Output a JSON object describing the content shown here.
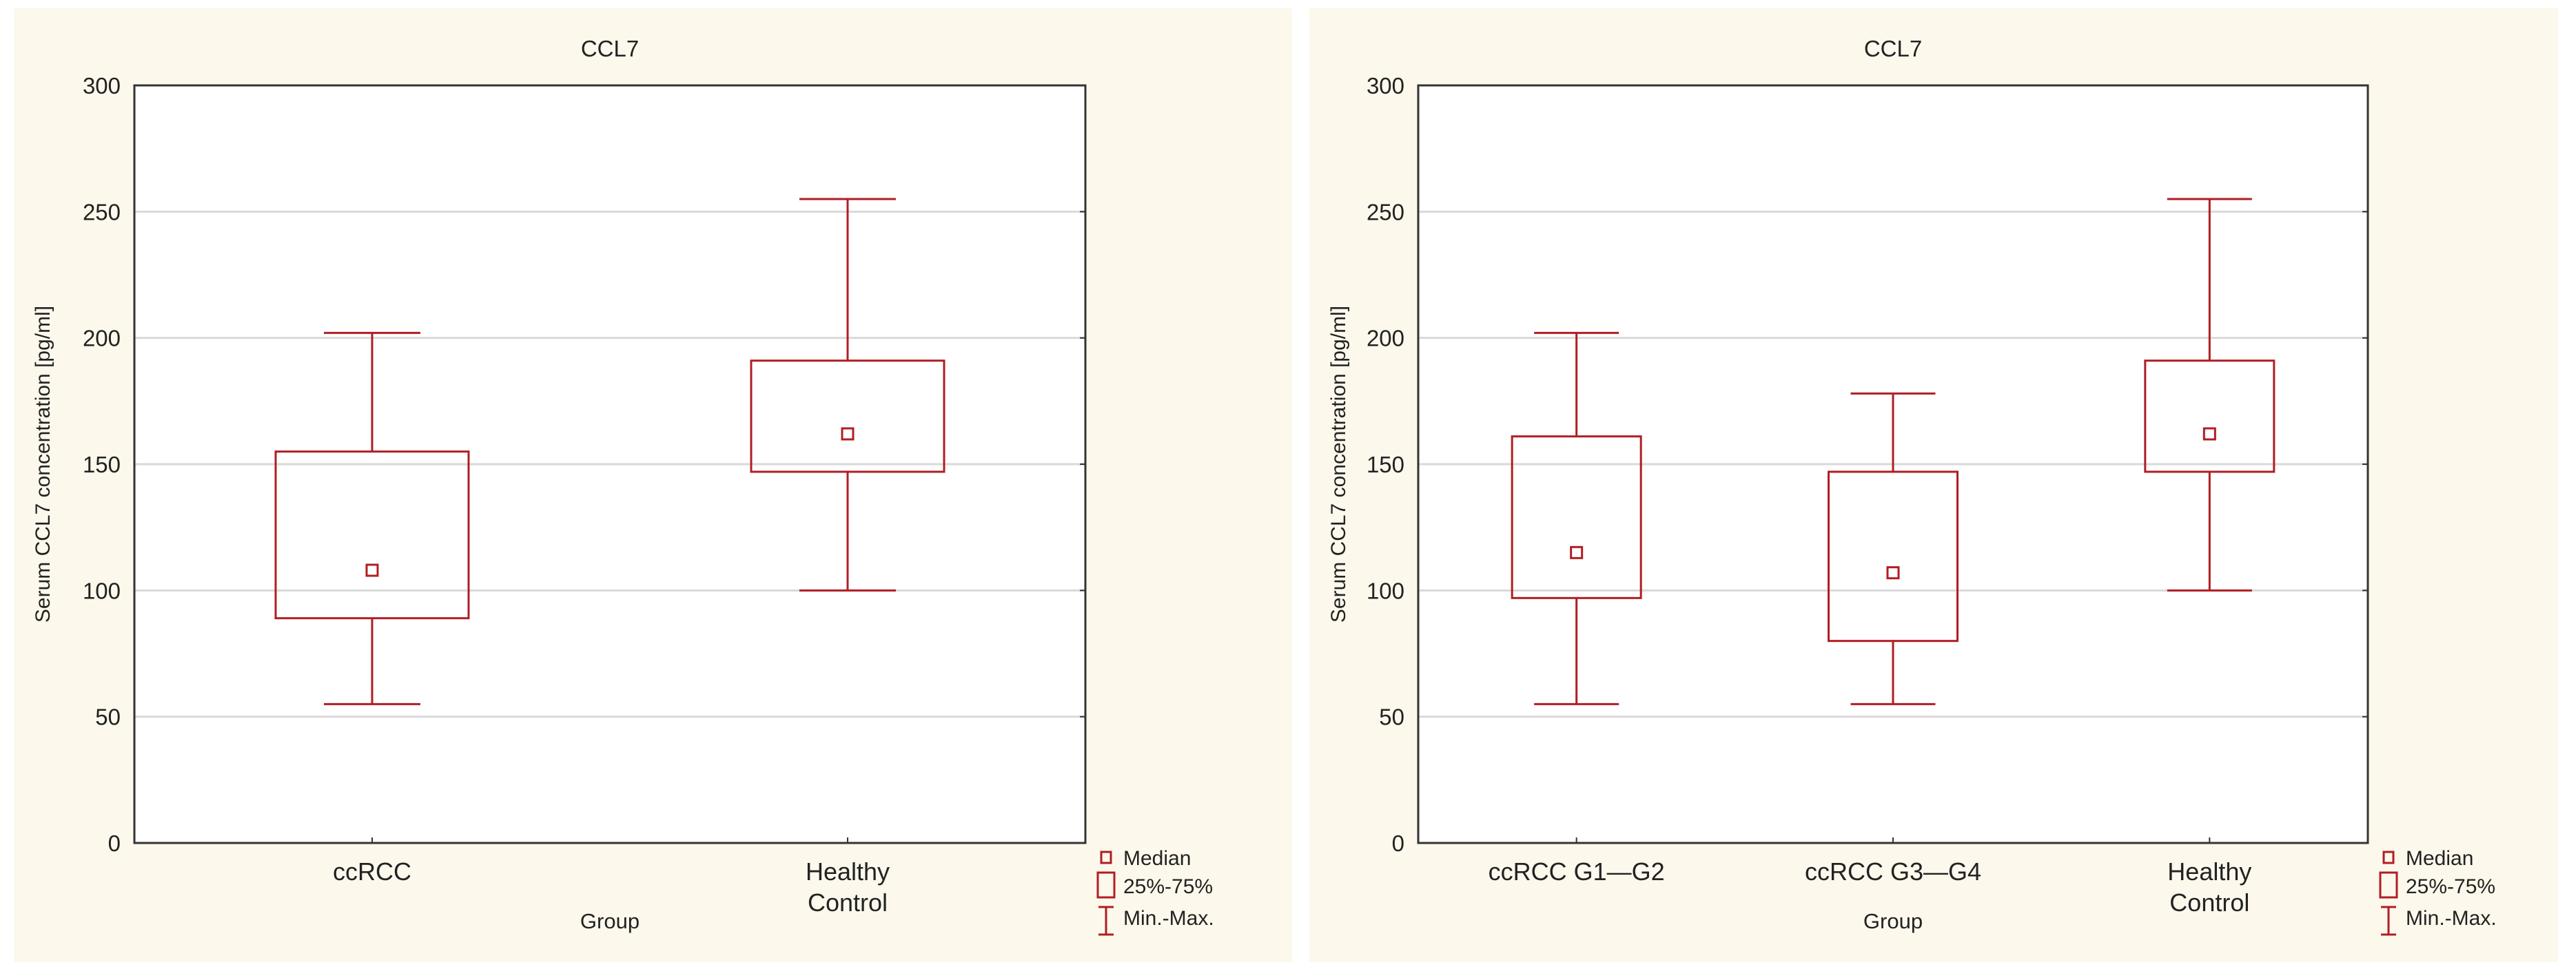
{
  "colors": {
    "box": "#b01e23",
    "panel_bg": "#fcf8ec",
    "grid": "#d9d9d9"
  },
  "chart_data": [
    {
      "type": "boxplot",
      "title": "CCL7",
      "xlabel": "Group",
      "ylabel": "Serum CCL7 concentration [pg/ml]",
      "ylim": [
        0,
        300
      ],
      "yticks": [
        0,
        50,
        100,
        150,
        200,
        250,
        300
      ],
      "grid": true,
      "legend_position": "bottom-right",
      "legend": [
        "Median",
        "25%-75%",
        "Min.-Max."
      ],
      "categories": [
        [
          "ccRCC"
        ],
        [
          "Healthy",
          "Control"
        ]
      ],
      "series": [
        {
          "name": "ccRCC",
          "min": 55,
          "q1": 89,
          "median": 108,
          "q3": 155,
          "max": 202
        },
        {
          "name": "Healthy Control",
          "min": 100,
          "q1": 147,
          "median": 162,
          "q3": 191,
          "max": 255
        }
      ]
    },
    {
      "type": "boxplot",
      "title": "CCL7",
      "xlabel": "Group",
      "ylabel": "Serum CCL7 concentration [pg/ml]",
      "ylim": [
        0,
        300
      ],
      "yticks": [
        0,
        50,
        100,
        150,
        200,
        250,
        300
      ],
      "grid": true,
      "legend_position": "bottom-right",
      "legend": [
        "Median",
        "25%-75%",
        "Min.-Max."
      ],
      "categories": [
        [
          "ccRCC G1—G2"
        ],
        [
          "ccRCC G3—G4"
        ],
        [
          "Healthy",
          "Control"
        ]
      ],
      "series": [
        {
          "name": "ccRCC G1—G2",
          "min": 55,
          "q1": 97,
          "median": 115,
          "q3": 161,
          "max": 202
        },
        {
          "name": "ccRCC G3—G4",
          "min": 55,
          "q1": 80,
          "median": 107,
          "q3": 147,
          "max": 178
        },
        {
          "name": "Healthy Control",
          "min": 100,
          "q1": 147,
          "median": 162,
          "q3": 191,
          "max": 255
        }
      ]
    }
  ]
}
